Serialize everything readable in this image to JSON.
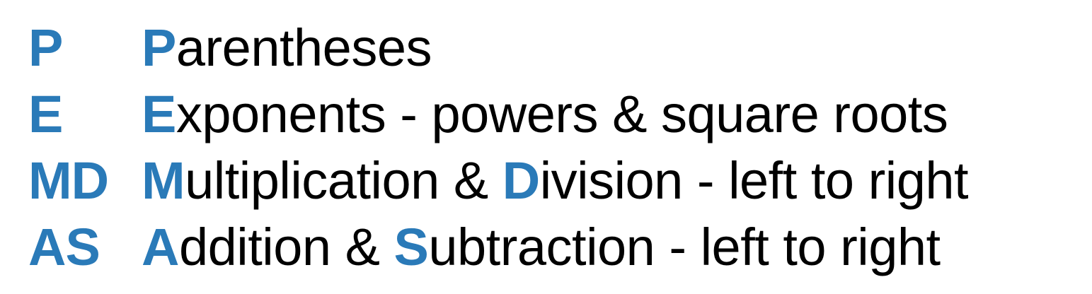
{
  "colors": {
    "accent": "#2a7ab8",
    "text": "#000000",
    "background": "#ffffff"
  },
  "rows": [
    {
      "abbr": "P",
      "parts": [
        {
          "text": "P",
          "highlight": true
        },
        {
          "text": "arentheses",
          "highlight": false
        }
      ]
    },
    {
      "abbr": "E",
      "parts": [
        {
          "text": "E",
          "highlight": true
        },
        {
          "text": "xponents - powers & square roots",
          "highlight": false
        }
      ]
    },
    {
      "abbr": "MD",
      "parts": [
        {
          "text": "M",
          "highlight": true
        },
        {
          "text": "ultiplication & ",
          "highlight": false
        },
        {
          "text": "D",
          "highlight": true
        },
        {
          "text": "ivision - left to right",
          "highlight": false
        }
      ]
    },
    {
      "abbr": "AS",
      "parts": [
        {
          "text": "A",
          "highlight": true
        },
        {
          "text": "ddition & ",
          "highlight": false
        },
        {
          "text": "S",
          "highlight": true
        },
        {
          "text": "ubtraction - left to right",
          "highlight": false
        }
      ]
    }
  ]
}
